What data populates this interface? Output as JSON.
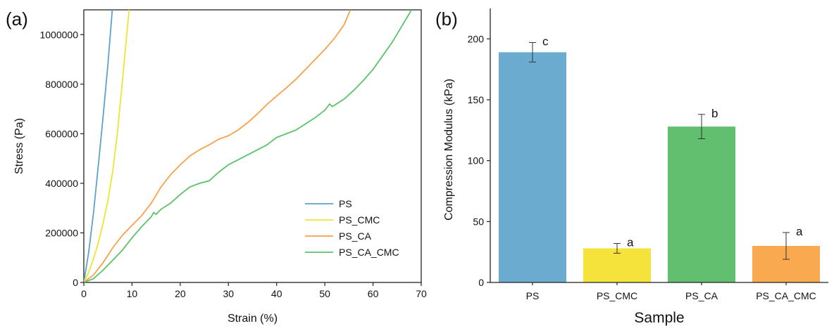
{
  "figure": {
    "panel_a_label": "(a)",
    "panel_b_label": "(b)"
  },
  "chart_data": [
    {
      "type": "line",
      "xlabel": "Strain (%)",
      "ylabel": "Stress (Pa)",
      "xlim": [
        0,
        70
      ],
      "ylim": [
        0,
        1100000
      ],
      "xticks": [
        0,
        10,
        20,
        30,
        40,
        50,
        60,
        70
      ],
      "yticks": [
        0,
        200000,
        400000,
        600000,
        800000,
        1000000
      ],
      "grid": false,
      "legend_position": "bottom-right",
      "series": [
        {
          "name": "PS",
          "color": "#5ba3c9",
          "points": [
            [
              0,
              0
            ],
            [
              1,
              120000
            ],
            [
              2,
              280000
            ],
            [
              3,
              470000
            ],
            [
              4,
              670000
            ],
            [
              5,
              880000
            ],
            [
              5.9,
              1100000
            ]
          ]
        },
        {
          "name": "PS_CMC",
          "color": "#f0e42f",
          "points": [
            [
              0,
              0
            ],
            [
              1,
              40000
            ],
            [
              2,
              95000
            ],
            [
              3,
              160000
            ],
            [
              4,
              240000
            ],
            [
              5,
              330000
            ],
            [
              6,
              450000
            ],
            [
              7,
              610000
            ],
            [
              8,
              810000
            ],
            [
              9,
              1020000
            ],
            [
              9.4,
              1100000
            ]
          ]
        },
        {
          "name": "PS_CA",
          "color": "#f7a24a",
          "points": [
            [
              0,
              0
            ],
            [
              2,
              30000
            ],
            [
              4,
              80000
            ],
            [
              6,
              140000
            ],
            [
              8,
              190000
            ],
            [
              10,
              230000
            ],
            [
              12,
              270000
            ],
            [
              14,
              320000
            ],
            [
              16,
              385000
            ],
            [
              18,
              435000
            ],
            [
              20,
              475000
            ],
            [
              22,
              510000
            ],
            [
              24,
              535000
            ],
            [
              26,
              555000
            ],
            [
              28,
              578000
            ],
            [
              30,
              592000
            ],
            [
              32,
              615000
            ],
            [
              34,
              645000
            ],
            [
              36,
              680000
            ],
            [
              38,
              718000
            ],
            [
              40,
              752000
            ],
            [
              42,
              785000
            ],
            [
              44,
              820000
            ],
            [
              46,
              860000
            ],
            [
              48,
              900000
            ],
            [
              50,
              940000
            ],
            [
              52,
              985000
            ],
            [
              54,
              1040000
            ],
            [
              55.3,
              1100000
            ]
          ]
        },
        {
          "name": "PS_CA_CMC",
          "color": "#5cc26a",
          "points": [
            [
              0,
              0
            ],
            [
              2,
              15000
            ],
            [
              4,
              50000
            ],
            [
              6,
              90000
            ],
            [
              8,
              130000
            ],
            [
              10,
              180000
            ],
            [
              12,
              225000
            ],
            [
              14,
              265000
            ],
            [
              14.5,
              282000
            ],
            [
              15,
              275000
            ],
            [
              16,
              295000
            ],
            [
              18,
              320000
            ],
            [
              20,
              355000
            ],
            [
              22,
              385000
            ],
            [
              24,
              400000
            ],
            [
              26,
              410000
            ],
            [
              28,
              445000
            ],
            [
              30,
              475000
            ],
            [
              32,
              495000
            ],
            [
              34,
              515000
            ],
            [
              36,
              535000
            ],
            [
              38,
              555000
            ],
            [
              40,
              585000
            ],
            [
              42,
              600000
            ],
            [
              44,
              615000
            ],
            [
              46,
              640000
            ],
            [
              48,
              665000
            ],
            [
              50,
              695000
            ],
            [
              51,
              720000
            ],
            [
              51.5,
              710000
            ],
            [
              52,
              715000
            ],
            [
              54,
              740000
            ],
            [
              56,
              775000
            ],
            [
              58,
              815000
            ],
            [
              60,
              860000
            ],
            [
              62,
              915000
            ],
            [
              64,
              970000
            ],
            [
              66,
              1035000
            ],
            [
              68,
              1100000
            ]
          ]
        }
      ]
    },
    {
      "type": "bar",
      "xlabel": "Sample",
      "ylabel": "Compression Modulus (kPa)",
      "ylim": [
        0,
        225
      ],
      "yticks": [
        0,
        50,
        100,
        150,
        200
      ],
      "grid": false,
      "categories": [
        "PS",
        "PS_CMC",
        "PS_CA",
        "PS_CA_CMC"
      ],
      "values": [
        189,
        28,
        128,
        30
      ],
      "errors": [
        8,
        4,
        10,
        11
      ],
      "significance": [
        "c",
        "a",
        "b",
        "a"
      ],
      "colors": [
        "#6aabcf",
        "#f5e23a",
        "#62bf6f",
        "#f9a94f"
      ]
    }
  ]
}
